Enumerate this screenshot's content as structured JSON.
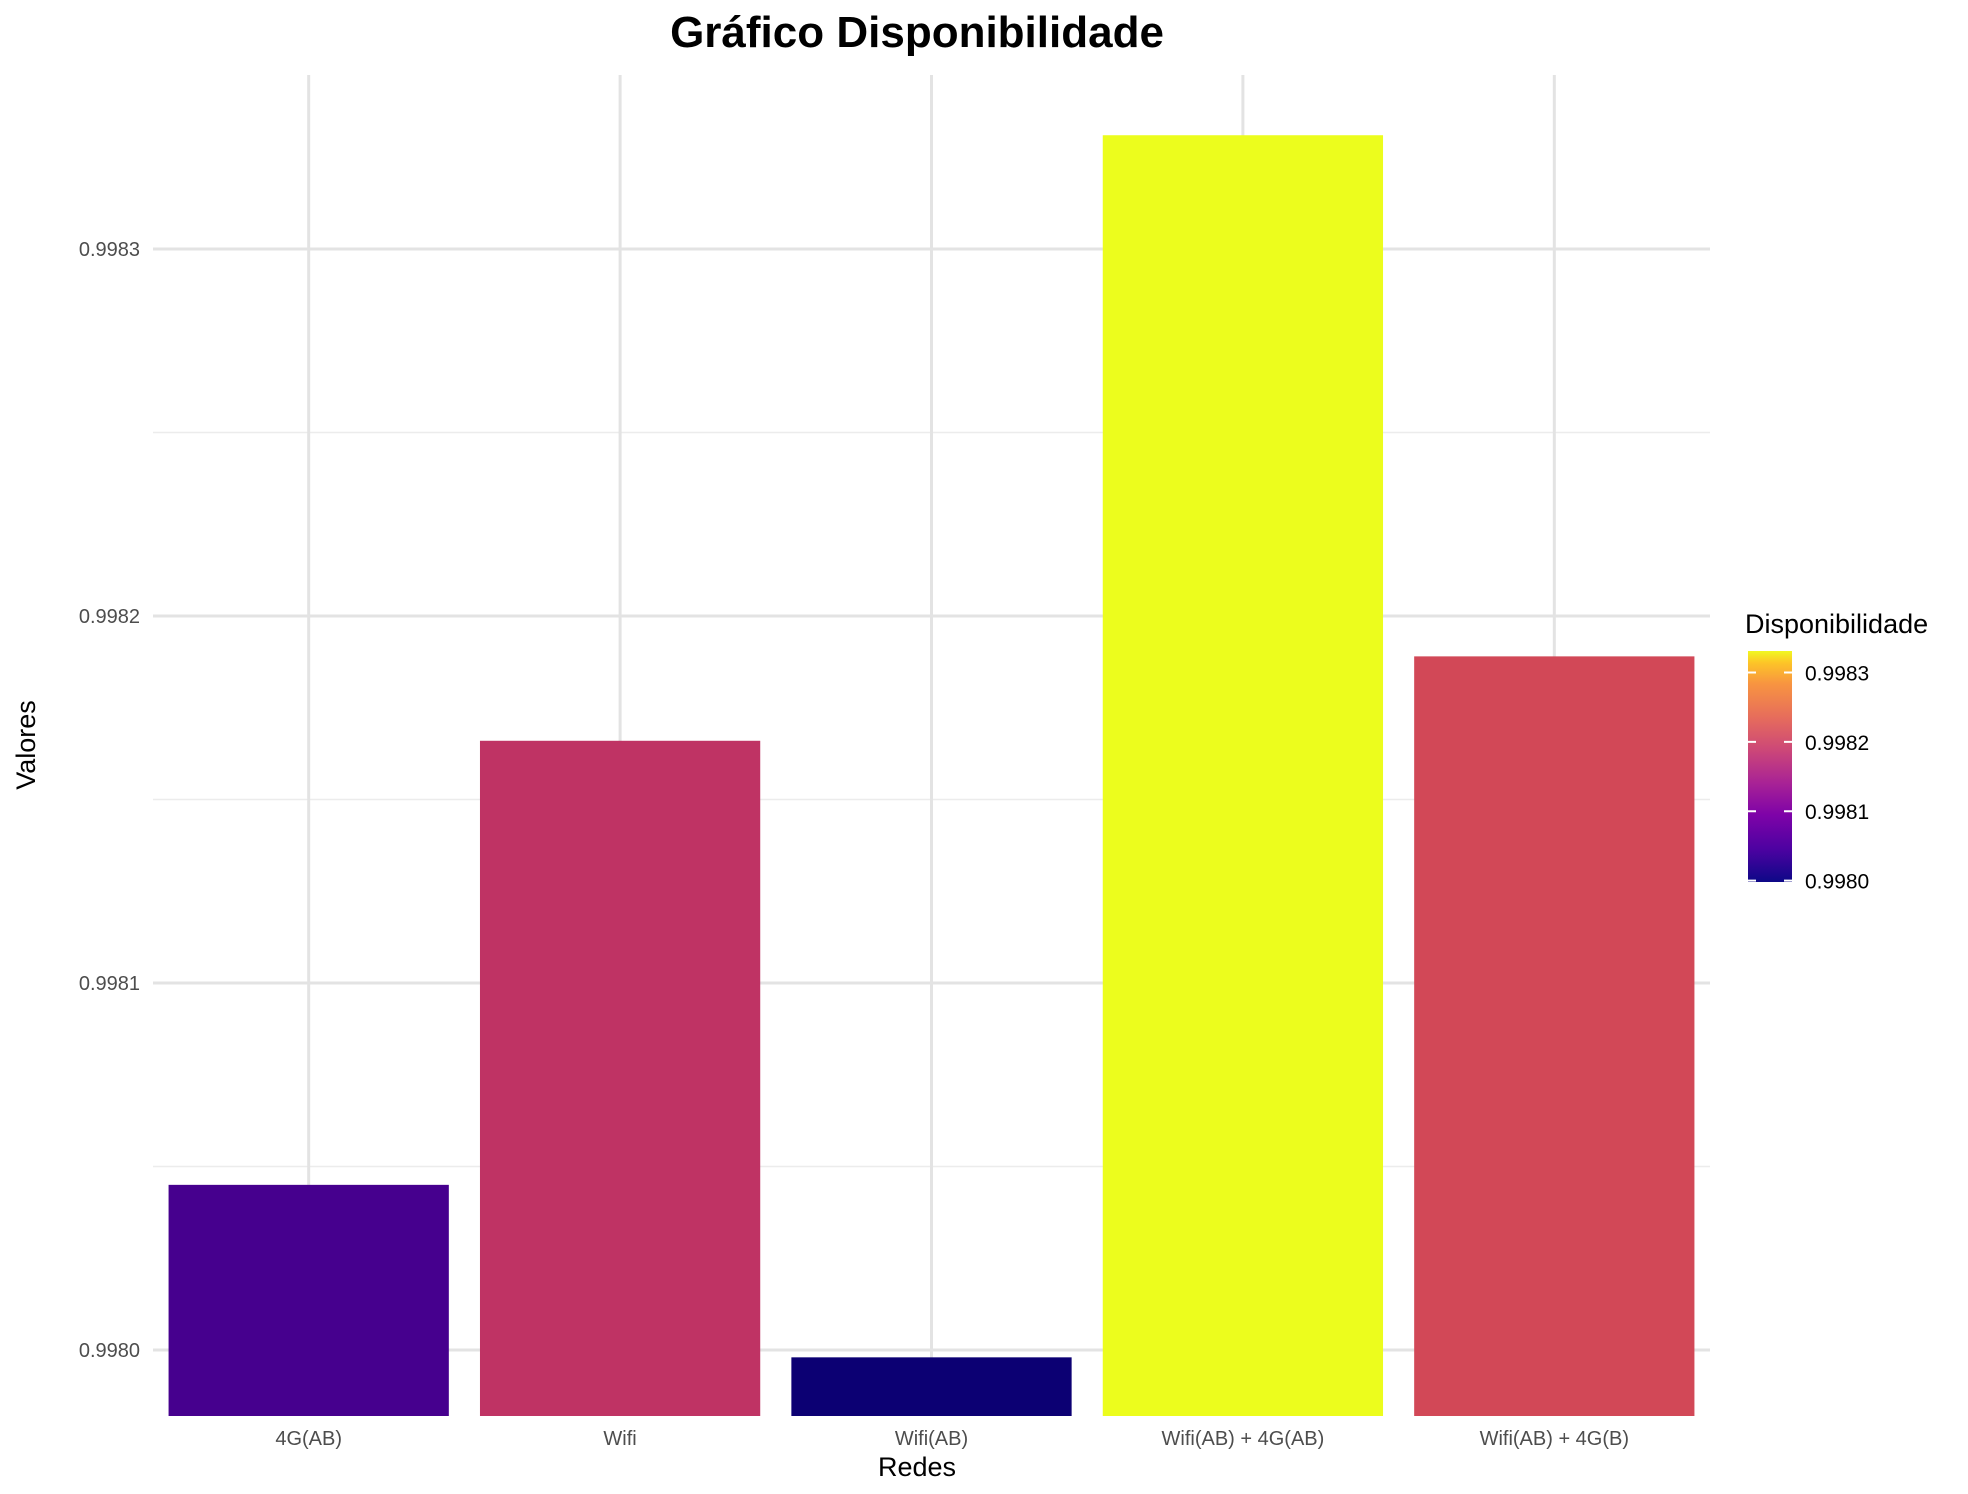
{
  "chart_data": {
    "type": "bar",
    "title": "Gráfico Disponibilidade",
    "xlabel": "Redes",
    "ylabel": "Valores",
    "categories": [
      "4G(AB)",
      "Wifi",
      "Wifi(AB)",
      "Wifi(AB) + 4G(AB)",
      "Wifi(AB) + 4G(B)"
    ],
    "values": [
      0.998045,
      0.998166,
      0.997998,
      0.998331,
      0.998189
    ],
    "bar_colors": [
      "#46008e",
      "#bf3364",
      "#0c0073",
      "#ecfd1d",
      "#d24857"
    ],
    "ylim": [
      0.99798,
      0.99834
    ],
    "yticks": [
      0.998,
      0.9981,
      0.9982,
      0.9983
    ],
    "ytick_labels": [
      "0.9980",
      "0.9981",
      "0.9982",
      "0.9983"
    ],
    "grid": true,
    "legend": {
      "title": "Disponibilidade",
      "position": "right",
      "type": "colorbar",
      "palette": "plasma",
      "range": [
        0.997998,
        0.998331
      ],
      "ticks": [
        0.998,
        0.9981,
        0.9982,
        0.9983
      ],
      "tick_labels": [
        "0.9980",
        "0.9981",
        "0.9982",
        "0.9983"
      ]
    }
  }
}
